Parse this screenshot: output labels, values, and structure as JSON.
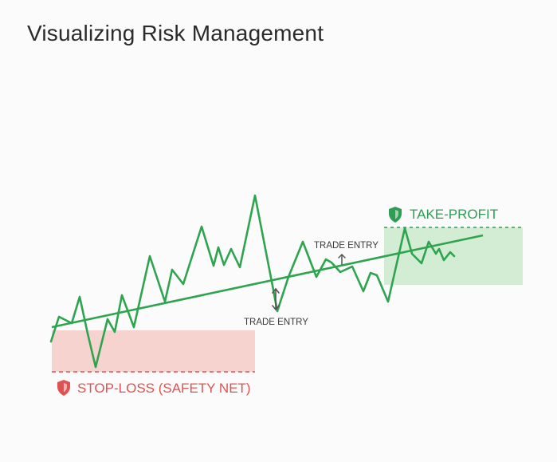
{
  "title": "Visualizing Risk Management",
  "labels": {
    "stop_loss": "STOP-LOSS (SAFETY NET)",
    "take_profit": "TAKE-PROFIT",
    "trade_entry_1": "TRADE ENTRY",
    "trade_entry_2": "TRADE ENTRY"
  },
  "icons": {
    "stop_loss": "shield-icon",
    "take_profit": "shield-icon",
    "entry_1": "up-down-arrow-icon",
    "entry_2": "up-arrow-icon"
  },
  "colors": {
    "price_line": "#2ea44f",
    "stop_loss": "#e05252",
    "stop_loss_zone": "#f7d3d0",
    "take_profit": "#2f9e52",
    "take_profit_zone": "#d3ecd4",
    "text": "#2b2b2b",
    "arrow": "#555555"
  }
}
